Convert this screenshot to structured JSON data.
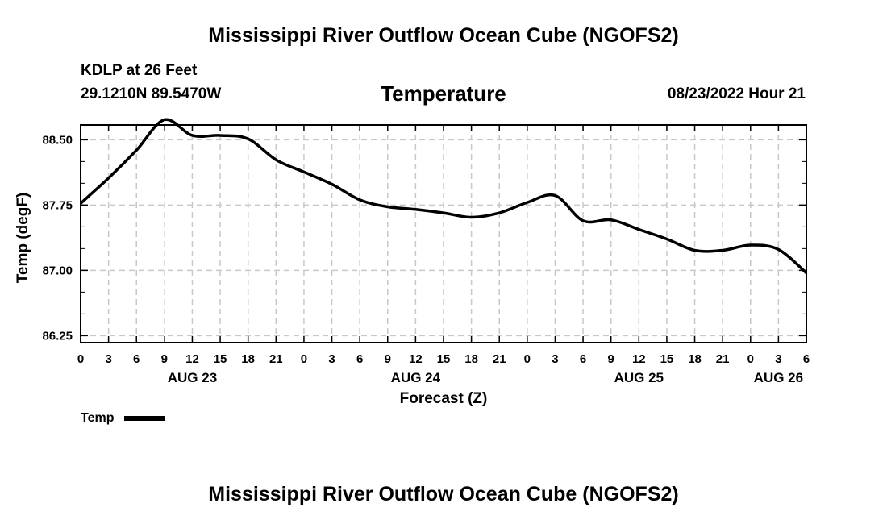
{
  "header": {
    "title": "Mississippi River Outflow Ocean Cube (NGOFS2)",
    "station": "KDLP at 26 Feet",
    "coordinates": "29.1210N  89.5470W",
    "variable": "Temperature",
    "datetime": "08/23/2022 Hour 21"
  },
  "footer": {
    "title": "Mississippi River Outflow Ocean Cube (NGOFS2)"
  },
  "legend": {
    "label": "Temp",
    "color": "#000000"
  },
  "chart_data": {
    "type": "line",
    "title": "Temperature",
    "xlabel": "Forecast (Z)",
    "ylabel": "Temp (degF)",
    "xlim": [
      0,
      78
    ],
    "ylim": [
      86.17,
      88.67
    ],
    "yticks": [
      "86.25",
      "87.00",
      "87.75",
      "88.50"
    ],
    "ytick_values": [
      86.25,
      87.0,
      87.75,
      88.5
    ],
    "xtick_labels": [
      "0",
      "3",
      "6",
      "9",
      "12",
      "15",
      "18",
      "21",
      "0",
      "3",
      "6",
      "9",
      "12",
      "15",
      "18",
      "21",
      "0",
      "3",
      "6",
      "9",
      "12",
      "15",
      "18",
      "21",
      "0",
      "3",
      "6"
    ],
    "date_labels": [
      {
        "label": "AUG 23",
        "hour": 12
      },
      {
        "label": "AUG 24",
        "hour": 36
      },
      {
        "label": "AUG 25",
        "hour": 60
      },
      {
        "label": "AUG 26",
        "hour": 75
      }
    ],
    "grid": true,
    "legend_position": "bottom-left",
    "series": [
      {
        "name": "Temp",
        "x": [
          0,
          3,
          6,
          9,
          12,
          15,
          18,
          21,
          24,
          27,
          30,
          33,
          36,
          39,
          42,
          45,
          48,
          51,
          54,
          57,
          60,
          63,
          66,
          69,
          72,
          75,
          78
        ],
        "values": [
          87.77,
          88.06,
          88.38,
          88.73,
          88.55,
          88.55,
          88.51,
          88.27,
          88.13,
          87.99,
          87.81,
          87.73,
          87.7,
          87.66,
          87.61,
          87.66,
          87.78,
          87.86,
          87.57,
          87.58,
          87.47,
          87.36,
          87.23,
          87.23,
          87.29,
          87.24,
          86.97
        ]
      }
    ]
  }
}
